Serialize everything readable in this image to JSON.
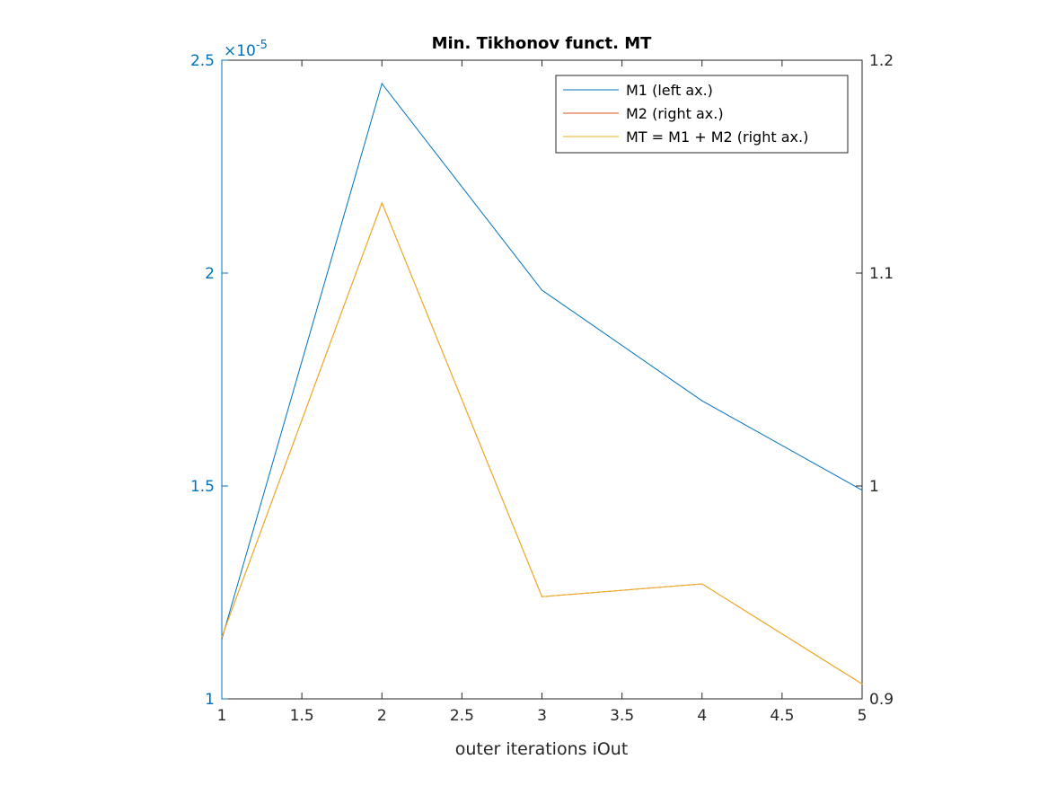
{
  "chart_data": {
    "type": "line",
    "title": "Min. Tikhonov funct. MT",
    "xlabel": "outer iterations iOut",
    "x": [
      1,
      2,
      3,
      4,
      5
    ],
    "xlim": [
      1,
      5
    ],
    "x_ticks": [
      "1",
      "1.5",
      "2",
      "2.5",
      "3",
      "3.5",
      "4",
      "4.5",
      "5"
    ],
    "left_axis": {
      "color": "#0072BD",
      "ylim": [
        1.0,
        2.5
      ],
      "exponent_label": "×10",
      "exponent": "-5",
      "ticks": [
        "1",
        "1.5",
        "2",
        "2.5"
      ]
    },
    "right_axis": {
      "color": "#262626",
      "ylim": [
        0.9,
        1.2
      ],
      "ticks": [
        "0.9",
        "1",
        "1.1",
        "1.2"
      ]
    },
    "series": [
      {
        "name": "M1 (left ax.)",
        "axis": "left",
        "color": "#0072BD",
        "values": [
          1.14,
          2.445,
          1.96,
          1.7,
          1.49
        ]
      },
      {
        "name": "M2 (right ax.)",
        "axis": "right",
        "color": "#D95319",
        "values": [
          0.929,
          1.133,
          0.948,
          0.954,
          0.907
        ]
      },
      {
        "name": "MT = M1 + M2 (right ax.)",
        "axis": "right",
        "color": "#EDB120",
        "values": [
          0.929,
          1.133,
          0.948,
          0.954,
          0.907
        ]
      }
    ],
    "legend_position": "top-right",
    "grid": false
  }
}
